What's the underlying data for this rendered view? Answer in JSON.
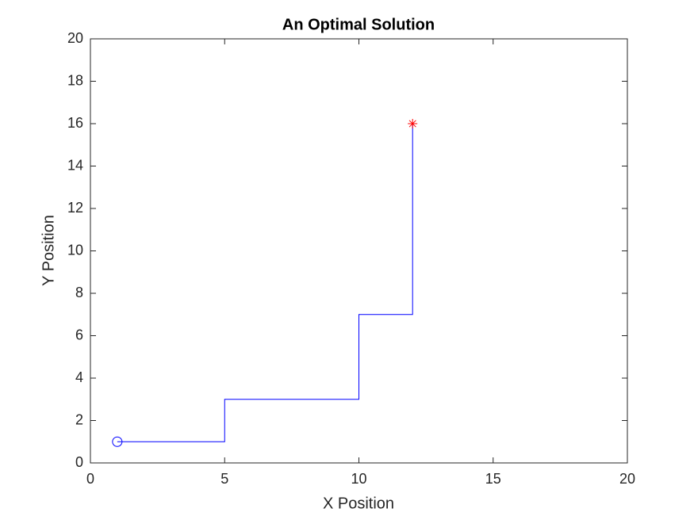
{
  "chart_data": {
    "type": "line",
    "title": "An Optimal Solution",
    "x_label": "X Position",
    "y_label": "Y Position",
    "x": [
      1,
      5,
      5,
      10,
      10,
      12,
      12
    ],
    "series": [
      {
        "color": "#0000ff",
        "values": [
          1,
          1,
          3,
          3,
          7,
          7,
          16
        ]
      }
    ],
    "markers": [
      {
        "symbol": "circle",
        "color": "#0000ff",
        "x": 1,
        "y": 1
      },
      {
        "symbol": "star",
        "color": "#ff0000",
        "x": 12,
        "y": 16
      }
    ],
    "xlim": [
      0,
      20
    ],
    "xticks": [
      0,
      5,
      10,
      15,
      20
    ],
    "ylim": [
      0,
      20
    ],
    "yticks": [
      0,
      2,
      4,
      6,
      8,
      10,
      12,
      14,
      16,
      18,
      20
    ],
    "grid": false
  }
}
